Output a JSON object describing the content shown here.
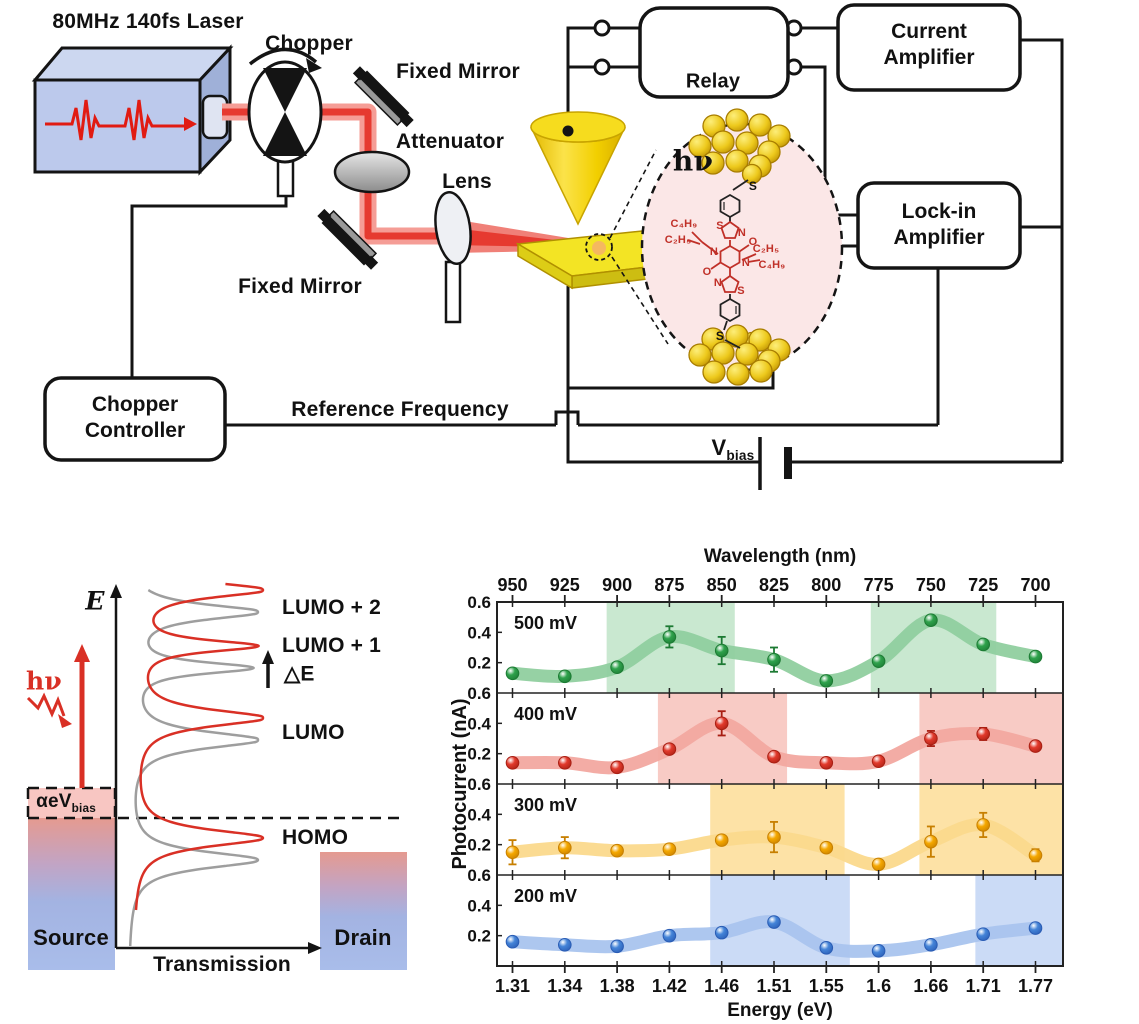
{
  "colors": {
    "laser_beam": "#e63a30",
    "beam_glow": "#f59d96",
    "wire": "#141414",
    "tip_gold": "#f2cf00",
    "substrate_gold": "#f3e424",
    "inset_background": "#fbe7e7",
    "molecule_red": "#c03028",
    "panel_500mv": "#2fa24c",
    "panel_400mv": "#e23a2c",
    "panel_300mv": "#f5a800",
    "panel_200mv": "#4484d8"
  },
  "apparatus": {
    "laser_label": "80MHz 140fs Laser",
    "chopper_label": "Chopper",
    "fixed_mirror_top_label": "Fixed Mirror",
    "attenuator_label": "Attenuator",
    "lens_label": "Lens",
    "fixed_mirror_bottom_label": "Fixed Mirror",
    "relay_label": "Relay",
    "current_amplifier_line1": "Current",
    "current_amplifier_line2": "Amplifier",
    "lockin_line1": "Lock-in",
    "lockin_line2": "Amplifier",
    "chopper_controller_line1": "Chopper",
    "chopper_controller_line2": "Controller",
    "reference_frequency_label": "Reference Frequency",
    "vbias_main": "V",
    "vbias_sub": "bias",
    "inset": {
      "hv_label": "hν",
      "sub1": "C₄H₉",
      "sub2": "C₂H₅",
      "sub3": "C₂H₅",
      "sub4": "C₄H₉",
      "atoms": {
        "s_link_top": "S",
        "s_link_bottom": "S",
        "thiazole1_s": "S",
        "thiazole1_n": "N",
        "core_n_left": "N",
        "core_n_right": "N",
        "core_o_left": "O",
        "core_o_right": "O",
        "thiazole2_n": "N",
        "thiazole2_s": "S"
      }
    }
  },
  "energy_diagram": {
    "axis_y_label": "E",
    "axis_x_label": "Transmission",
    "hv_label": "hν",
    "bias_main": "αeV",
    "bias_sub": "bias",
    "delta_e_label": "△E",
    "levels": {
      "lumo2": "LUMO + 2",
      "lumo1": "LUMO + 1",
      "lumo": "LUMO",
      "homo": "HOMO"
    },
    "source_label": "Source",
    "drain_label": "Drain"
  },
  "chart_data": {
    "type": "scatter",
    "title": "",
    "top_axis_label": "Wavelength (nm)",
    "top_tick_labels": [
      "950",
      "925",
      "900",
      "875",
      "850",
      "825",
      "800",
      "775",
      "750",
      "725",
      "700"
    ],
    "xlabel": "Energy (eV)",
    "x_tick_labels": [
      "1.31",
      "1.34",
      "1.38",
      "1.42",
      "1.46",
      "1.51",
      "1.55",
      "1.6",
      "1.66",
      "1.71",
      "1.77"
    ],
    "x_values_ev": [
      1.31,
      1.34,
      1.38,
      1.42,
      1.46,
      1.51,
      1.55,
      1.6,
      1.66,
      1.71,
      1.77
    ],
    "ylabel": "Photocurrent (nA)",
    "ylim": [
      0,
      0.6
    ],
    "y_tick_labels": [
      "0.6",
      "0.4",
      "0.2"
    ],
    "y_tick_values": [
      0.6,
      0.4,
      0.2
    ],
    "grid": false,
    "legend": "panel labels top-left",
    "panels": [
      {
        "label": "500 mV",
        "point_color": "#2fa24c",
        "edge_color": "#1c7a33",
        "trend_color": "#90cf9f",
        "highlight_color": "#c9e8d0",
        "values": [
          0.13,
          0.11,
          0.17,
          0.37,
          0.28,
          0.22,
          0.08,
          0.21,
          0.48,
          0.32,
          0.24
        ],
        "errors": [
          0.02,
          0.02,
          0.02,
          0.07,
          0.09,
          0.08,
          0.02,
          0.03,
          0.02,
          0.03,
          0.03
        ],
        "highlight_bands": [
          [
            1.8,
            4.25
          ],
          [
            6.85,
            9.25
          ]
        ]
      },
      {
        "label": "400 mV",
        "point_color": "#e23a2c",
        "edge_color": "#a81f13",
        "trend_color": "#f2a8a0",
        "highlight_color": "#f8cbc5",
        "values": [
          0.14,
          0.14,
          0.11,
          0.23,
          0.4,
          0.18,
          0.14,
          0.15,
          0.3,
          0.33,
          0.25
        ],
        "errors": [
          0.03,
          0.02,
          0.02,
          0.02,
          0.08,
          0.03,
          0.03,
          0.02,
          0.05,
          0.04,
          0.03
        ],
        "highlight_bands": [
          [
            2.78,
            5.25
          ],
          [
            7.78,
            10.55
          ]
        ]
      },
      {
        "label": "300 mV",
        "point_color": "#f5a800",
        "edge_color": "#c77f00",
        "trend_color": "#fbd98c",
        "highlight_color": "#fde2a6",
        "values": [
          0.15,
          0.18,
          0.16,
          0.17,
          0.23,
          0.25,
          0.18,
          0.07,
          0.22,
          0.33,
          0.13
        ],
        "errors": [
          0.08,
          0.07,
          0.02,
          0.02,
          0.03,
          0.1,
          0.03,
          0.02,
          0.1,
          0.08,
          0.04
        ],
        "highlight_bands": [
          [
            3.78,
            6.35
          ],
          [
            7.78,
            10.55
          ]
        ]
      },
      {
        "label": "200 mV",
        "point_color": "#4484d8",
        "edge_color": "#2a5cb4",
        "trend_color": "#a9c4ee",
        "highlight_color": "#cbdbf6",
        "values": [
          0.16,
          0.14,
          0.13,
          0.2,
          0.22,
          0.29,
          0.12,
          0.1,
          0.14,
          0.21,
          0.25
        ],
        "errors": [
          0.02,
          0.015,
          0.015,
          0.03,
          0.015,
          0.015,
          0.015,
          0.015,
          0.015,
          0.02,
          0.02
        ],
        "highlight_bands": [
          [
            3.78,
            6.45
          ],
          [
            8.85,
            10.55
          ]
        ]
      }
    ]
  }
}
